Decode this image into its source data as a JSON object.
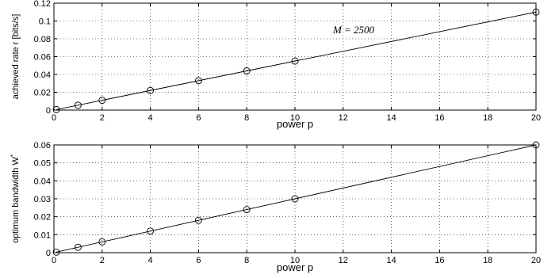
{
  "chart_data": [
    {
      "type": "line",
      "xlabel": "power p",
      "ylabel": "achieved rate r [bits/s]",
      "annotation": "M = 2500",
      "xlim": [
        0,
        20
      ],
      "ylim": [
        0,
        0.12
      ],
      "x_ticks": [
        0,
        2,
        4,
        6,
        8,
        10,
        12,
        14,
        16,
        18,
        20
      ],
      "y_ticks": [
        0,
        0.02,
        0.04,
        0.06,
        0.08,
        0.1,
        0.12
      ],
      "y_tick_labels": [
        "0",
        "0.02",
        "0.04",
        "0.06",
        "0.08",
        "0.1",
        "0.12"
      ],
      "grid": true,
      "marker": "circle",
      "x": [
        0.1,
        1,
        2,
        4,
        6,
        8,
        10,
        20
      ],
      "y": [
        0.00055,
        0.0055,
        0.011,
        0.022,
        0.033,
        0.044,
        0.055,
        0.11
      ]
    },
    {
      "type": "line",
      "xlabel": "power p",
      "ylabel": "optimum bandwidth W",
      "ylabel_superscript": "*",
      "xlim": [
        0,
        20
      ],
      "ylim": [
        0,
        0.06
      ],
      "x_ticks": [
        0,
        2,
        4,
        6,
        8,
        10,
        12,
        14,
        16,
        18,
        20
      ],
      "y_ticks": [
        0,
        0.01,
        0.02,
        0.03,
        0.04,
        0.05,
        0.06
      ],
      "y_tick_labels": [
        "0",
        "0.01",
        "0.02",
        "0.03",
        "0.04",
        "0.05",
        "0.06"
      ],
      "grid": true,
      "marker": "circle",
      "x": [
        0.1,
        1,
        2,
        4,
        6,
        8,
        10,
        20
      ],
      "y": [
        0.0003,
        0.003,
        0.006,
        0.012,
        0.018,
        0.024,
        0.03,
        0.06
      ]
    }
  ]
}
